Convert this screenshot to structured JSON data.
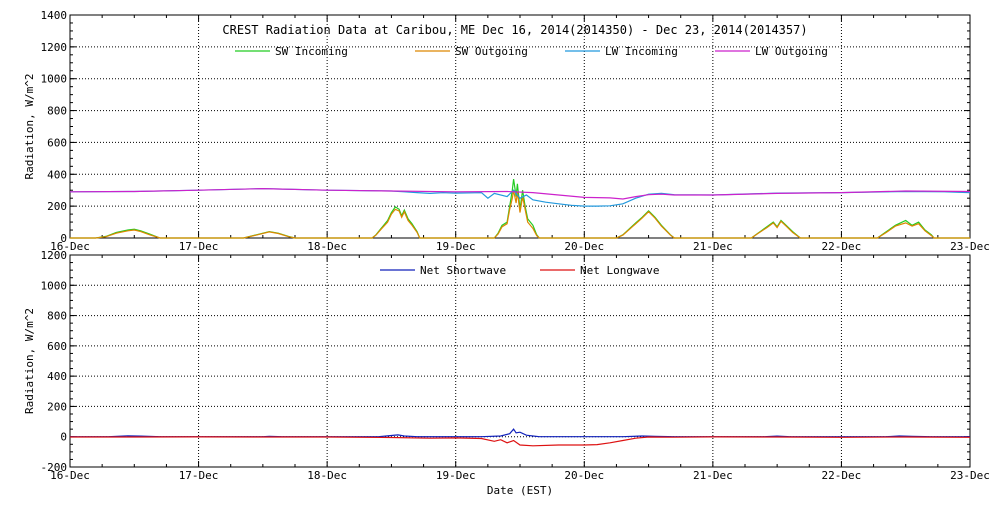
{
  "chart_data": [
    {
      "type": "line",
      "title": "CREST Radiation Data at Caribou, ME   Dec 16, 2014(2014350) - Dec 23, 2014(2014357)",
      "ylabel": "Radiation, W/m^2",
      "ylim": [
        0,
        1400
      ],
      "yticks": [
        "0",
        "200",
        "400",
        "600",
        "800",
        "1000",
        "1200",
        "1400"
      ],
      "xlabel": "",
      "xlim": [
        0,
        7
      ],
      "xticks": [
        "16-Dec",
        "17-Dec",
        "18-Dec",
        "19-Dec",
        "20-Dec",
        "21-Dec",
        "22-Dec",
        "23-Dec"
      ],
      "grid": true,
      "legend": "top-center",
      "series": [
        {
          "name": "SW Incoming",
          "color": "#22cc22",
          "points": [
            [
              0,
              0
            ],
            [
              0.2,
              0
            ],
            [
              0.28,
              10
            ],
            [
              0.36,
              35
            ],
            [
              0.45,
              50
            ],
            [
              0.5,
              55
            ],
            [
              0.55,
              45
            ],
            [
              0.62,
              25
            ],
            [
              0.7,
              0
            ],
            [
              1.35,
              0
            ],
            [
              1.45,
              20
            ],
            [
              1.55,
              40
            ],
            [
              1.62,
              30
            ],
            [
              1.7,
              10
            ],
            [
              1.75,
              0
            ],
            [
              2.35,
              0
            ],
            [
              2.38,
              20
            ],
            [
              2.42,
              60
            ],
            [
              2.47,
              110
            ],
            [
              2.5,
              160
            ],
            [
              2.53,
              195
            ],
            [
              2.56,
              180
            ],
            [
              2.58,
              140
            ],
            [
              2.6,
              175
            ],
            [
              2.63,
              120
            ],
            [
              2.66,
              90
            ],
            [
              2.7,
              40
            ],
            [
              2.72,
              0
            ],
            [
              3.3,
              0
            ],
            [
              3.33,
              30
            ],
            [
              3.36,
              80
            ],
            [
              3.4,
              100
            ],
            [
              3.42,
              200
            ],
            [
              3.44,
              300
            ],
            [
              3.45,
              370
            ],
            [
              3.47,
              260
            ],
            [
              3.48,
              340
            ],
            [
              3.5,
              180
            ],
            [
              3.52,
              300
            ],
            [
              3.54,
              200
            ],
            [
              3.56,
              120
            ],
            [
              3.6,
              80
            ],
            [
              3.63,
              20
            ],
            [
              3.65,
              0
            ],
            [
              4.25,
              0
            ],
            [
              4.3,
              20
            ],
            [
              4.38,
              80
            ],
            [
              4.45,
              130
            ],
            [
              4.5,
              170
            ],
            [
              4.55,
              130
            ],
            [
              4.6,
              80
            ],
            [
              4.67,
              20
            ],
            [
              4.7,
              0
            ],
            [
              5.3,
              0
            ],
            [
              5.35,
              30
            ],
            [
              5.42,
              70
            ],
            [
              5.47,
              100
            ],
            [
              5.5,
              70
            ],
            [
              5.53,
              110
            ],
            [
              5.57,
              80
            ],
            [
              5.62,
              40
            ],
            [
              5.68,
              0
            ],
            [
              6.28,
              0
            ],
            [
              6.35,
              40
            ],
            [
              6.42,
              80
            ],
            [
              6.5,
              110
            ],
            [
              6.55,
              80
            ],
            [
              6.6,
              100
            ],
            [
              6.65,
              50
            ],
            [
              6.7,
              20
            ],
            [
              6.72,
              0
            ],
            [
              7,
              0
            ]
          ]
        },
        {
          "name": "SW Outgoing",
          "color": "#dd8800",
          "points": [
            [
              0,
              0
            ],
            [
              0.2,
              0
            ],
            [
              0.28,
              8
            ],
            [
              0.36,
              30
            ],
            [
              0.45,
              45
            ],
            [
              0.5,
              50
            ],
            [
              0.55,
              40
            ],
            [
              0.62,
              20
            ],
            [
              0.7,
              0
            ],
            [
              1.35,
              0
            ],
            [
              1.45,
              18
            ],
            [
              1.55,
              38
            ],
            [
              1.62,
              28
            ],
            [
              1.7,
              8
            ],
            [
              1.75,
              0
            ],
            [
              2.35,
              0
            ],
            [
              2.38,
              18
            ],
            [
              2.42,
              55
            ],
            [
              2.47,
              100
            ],
            [
              2.5,
              150
            ],
            [
              2.53,
              180
            ],
            [
              2.56,
              170
            ],
            [
              2.58,
              130
            ],
            [
              2.6,
              165
            ],
            [
              2.63,
              110
            ],
            [
              2.66,
              80
            ],
            [
              2.7,
              35
            ],
            [
              2.72,
              0
            ],
            [
              3.3,
              0
            ],
            [
              3.33,
              25
            ],
            [
              3.36,
              70
            ],
            [
              3.4,
              90
            ],
            [
              3.42,
              180
            ],
            [
              3.44,
              250
            ],
            [
              3.45,
              300
            ],
            [
              3.47,
              220
            ],
            [
              3.48,
              290
            ],
            [
              3.5,
              160
            ],
            [
              3.52,
              260
            ],
            [
              3.54,
              180
            ],
            [
              3.56,
              100
            ],
            [
              3.6,
              60
            ],
            [
              3.63,
              15
            ],
            [
              3.65,
              0
            ],
            [
              4.25,
              0
            ],
            [
              4.3,
              18
            ],
            [
              4.38,
              75
            ],
            [
              4.45,
              125
            ],
            [
              4.5,
              165
            ],
            [
              4.55,
              125
            ],
            [
              4.6,
              75
            ],
            [
              4.67,
              18
            ],
            [
              4.7,
              0
            ],
            [
              5.3,
              0
            ],
            [
              5.35,
              28
            ],
            [
              5.42,
              65
            ],
            [
              5.47,
              95
            ],
            [
              5.5,
              65
            ],
            [
              5.53,
              105
            ],
            [
              5.57,
              75
            ],
            [
              5.62,
              35
            ],
            [
              5.68,
              0
            ],
            [
              6.28,
              0
            ],
            [
              6.35,
              35
            ],
            [
              6.42,
              75
            ],
            [
              6.5,
              95
            ],
            [
              6.55,
              75
            ],
            [
              6.6,
              90
            ],
            [
              6.65,
              45
            ],
            [
              6.7,
              15
            ],
            [
              6.72,
              0
            ],
            [
              7,
              0
            ]
          ]
        },
        {
          "name": "LW Incoming",
          "color": "#2299dd",
          "points": [
            [
              0,
              290
            ],
            [
              0.5,
              292
            ],
            [
              1,
              300
            ],
            [
              1.5,
              310
            ],
            [
              2,
              300
            ],
            [
              2.5,
              295
            ],
            [
              2.6,
              290
            ],
            [
              2.7,
              285
            ],
            [
              2.8,
              280
            ],
            [
              2.9,
              285
            ],
            [
              3,
              282
            ],
            [
              3.2,
              285
            ],
            [
              3.25,
              250
            ],
            [
              3.3,
              280
            ],
            [
              3.4,
              260
            ],
            [
              3.45,
              300
            ],
            [
              3.5,
              250
            ],
            [
              3.55,
              270
            ],
            [
              3.6,
              240
            ],
            [
              3.7,
              225
            ],
            [
              3.8,
              215
            ],
            [
              3.9,
              205
            ],
            [
              4,
              200
            ],
            [
              4.1,
              200
            ],
            [
              4.2,
              202
            ],
            [
              4.3,
              215
            ],
            [
              4.4,
              250
            ],
            [
              4.5,
              275
            ],
            [
              4.6,
              280
            ],
            [
              4.7,
              272
            ],
            [
              5,
              270
            ],
            [
              5.5,
              282
            ],
            [
              6,
              285
            ],
            [
              6.5,
              292
            ],
            [
              6.8,
              290
            ],
            [
              7,
              285
            ]
          ]
        },
        {
          "name": "LW Outgoing",
          "color": "#cc22cc",
          "points": [
            [
              0,
              290
            ],
            [
              0.5,
              292
            ],
            [
              1,
              300
            ],
            [
              1.5,
              310
            ],
            [
              2,
              300
            ],
            [
              2.5,
              295
            ],
            [
              3,
              290
            ],
            [
              3.4,
              292
            ],
            [
              3.6,
              285
            ],
            [
              3.8,
              270
            ],
            [
              4,
              255
            ],
            [
              4.2,
              252
            ],
            [
              4.3,
              245
            ],
            [
              4.4,
              260
            ],
            [
              4.5,
              272
            ],
            [
              4.6,
              275
            ],
            [
              4.7,
              270
            ],
            [
              5,
              270
            ],
            [
              5.5,
              280
            ],
            [
              6,
              285
            ],
            [
              6.5,
              295
            ],
            [
              7,
              292
            ]
          ]
        }
      ]
    },
    {
      "type": "line",
      "title": "",
      "ylabel": "Radiation, W/m^2",
      "ylim": [
        -200,
        1200
      ],
      "yticks": [
        "-200",
        "0",
        "200",
        "400",
        "600",
        "800",
        "1000",
        "1200"
      ],
      "xlabel": "Date (EST)",
      "xlim": [
        0,
        7
      ],
      "xticks": [
        "16-Dec",
        "17-Dec",
        "18-Dec",
        "19-Dec",
        "20-Dec",
        "21-Dec",
        "22-Dec",
        "23-Dec"
      ],
      "grid": true,
      "legend": "top-center",
      "series": [
        {
          "name": "Net Shortwave",
          "color": "#1122bb",
          "points": [
            [
              0,
              0
            ],
            [
              0.3,
              0
            ],
            [
              0.45,
              6
            ],
            [
              0.55,
              4
            ],
            [
              0.7,
              0
            ],
            [
              1.5,
              0
            ],
            [
              1.55,
              2
            ],
            [
              1.65,
              0
            ],
            [
              2.4,
              0
            ],
            [
              2.5,
              8
            ],
            [
              2.55,
              12
            ],
            [
              2.6,
              5
            ],
            [
              2.7,
              0
            ],
            [
              3.2,
              0
            ],
            [
              3.35,
              5
            ],
            [
              3.42,
              20
            ],
            [
              3.45,
              50
            ],
            [
              3.47,
              25
            ],
            [
              3.5,
              30
            ],
            [
              3.55,
              10
            ],
            [
              3.6,
              5
            ],
            [
              3.65,
              0
            ],
            [
              4.3,
              0
            ],
            [
              4.45,
              5
            ],
            [
              4.55,
              3
            ],
            [
              4.7,
              0
            ],
            [
              5.4,
              0
            ],
            [
              5.5,
              4
            ],
            [
              5.6,
              0
            ],
            [
              6.35,
              0
            ],
            [
              6.45,
              5
            ],
            [
              6.55,
              3
            ],
            [
              6.7,
              0
            ],
            [
              7,
              0
            ]
          ]
        },
        {
          "name": "Net Longwave",
          "color": "#dd1111",
          "points": [
            [
              0,
              -2
            ],
            [
              0.5,
              -2
            ],
            [
              1,
              -1
            ],
            [
              1.5,
              -2
            ],
            [
              2,
              -2
            ],
            [
              2.5,
              -5
            ],
            [
              2.8,
              -10
            ],
            [
              3,
              -8
            ],
            [
              3.2,
              -12
            ],
            [
              3.3,
              -30
            ],
            [
              3.35,
              -20
            ],
            [
              3.4,
              -40
            ],
            [
              3.45,
              -25
            ],
            [
              3.5,
              -55
            ],
            [
              3.6,
              -60
            ],
            [
              3.8,
              -55
            ],
            [
              4,
              -55
            ],
            [
              4.1,
              -52
            ],
            [
              4.2,
              -40
            ],
            [
              4.3,
              -25
            ],
            [
              4.4,
              -10
            ],
            [
              4.5,
              -2
            ],
            [
              4.7,
              -3
            ],
            [
              5,
              -1
            ],
            [
              5.5,
              -2
            ],
            [
              6,
              -4
            ],
            [
              6.5,
              -2
            ],
            [
              7,
              -4
            ]
          ]
        }
      ]
    }
  ]
}
